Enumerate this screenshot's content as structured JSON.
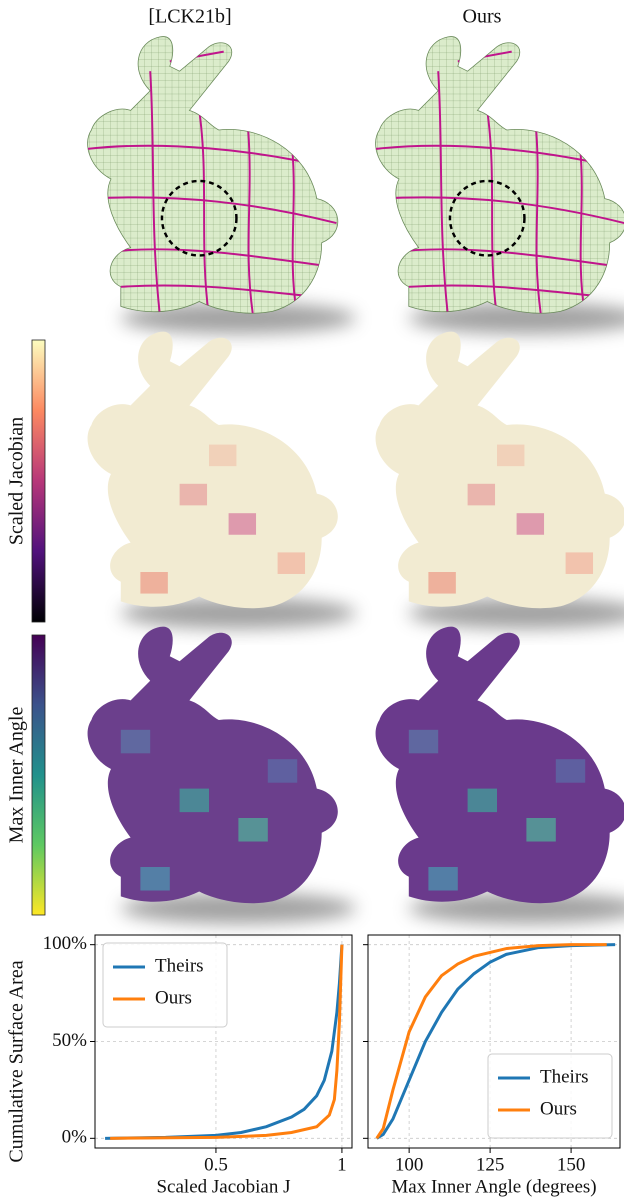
{
  "column_titles": [
    "[LCK21b]",
    "Ours"
  ],
  "colorbar_labels": [
    "Scaled Jacobian",
    "Max Inner Angle"
  ],
  "chart_data": [
    {
      "type": "line",
      "ylabel": "Cumulative Surface Area",
      "xlabel": "Scaled Jacobian J",
      "xlim": [
        0.02,
        1.04
      ],
      "xticks": [
        0.5,
        1.0
      ],
      "ylim": [
        -5,
        105
      ],
      "yticks": [
        {
          "value": 0,
          "label": "0%"
        },
        {
          "value": 50,
          "label": "50%"
        },
        {
          "value": 100,
          "label": "100%"
        }
      ],
      "grid": true,
      "legend": "upper left",
      "series": [
        {
          "name": "Theirs",
          "color": "#1f77b4",
          "x": [
            0.06,
            0.3,
            0.5,
            0.6,
            0.7,
            0.8,
            0.85,
            0.9,
            0.93,
            0.96,
            0.98,
            0.99,
            1.0
          ],
          "values": [
            0,
            0.5,
            1.5,
            3,
            6,
            11,
            15,
            22,
            30,
            45,
            65,
            80,
            100
          ]
        },
        {
          "name": "Ours",
          "color": "#ff7f0e",
          "x": [
            0.08,
            0.5,
            0.7,
            0.8,
            0.9,
            0.95,
            0.97,
            0.98,
            0.99,
            1.0
          ],
          "values": [
            0,
            0.5,
            1.5,
            3,
            6,
            12,
            20,
            35,
            60,
            100
          ]
        }
      ]
    },
    {
      "type": "line",
      "xlabel": "Max Inner Angle (degrees)",
      "xlim": [
        87.3,
        165.1
      ],
      "xticks": [
        100,
        125,
        150
      ],
      "ylim": [
        -5,
        105
      ],
      "yticks": [
        0,
        50,
        100
      ],
      "grid": true,
      "legend": "lower right",
      "series": [
        {
          "name": "Theirs",
          "color": "#1f77b4",
          "x": [
            90,
            92,
            95,
            100,
            105,
            110,
            115,
            120,
            125,
            130,
            140,
            150,
            163.6
          ],
          "values": [
            0,
            2,
            10,
            30,
            50,
            65,
            77,
            85,
            91,
            95,
            98.5,
            99.5,
            100
          ]
        },
        {
          "name": "Ours",
          "color": "#ff7f0e",
          "x": [
            90,
            92,
            95,
            100,
            105,
            110,
            115,
            120,
            130,
            140,
            150,
            161
          ],
          "values": [
            0,
            5,
            25,
            55,
            73,
            84,
            90,
            94,
            98,
            99.5,
            100,
            100
          ]
        }
      ]
    }
  ]
}
